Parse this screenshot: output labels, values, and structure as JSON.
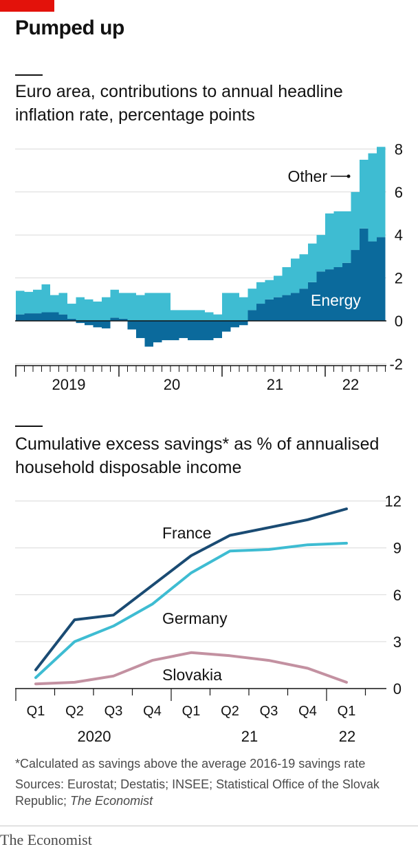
{
  "headline": "Pumped up",
  "chart_data": [
    {
      "type": "bar",
      "stacked": true,
      "title": "Euro area, contributions to annual headline inflation rate, percentage points",
      "ylim": [
        -2,
        8
      ],
      "yticks": [
        -2,
        0,
        2,
        4,
        6,
        8
      ],
      "x_labels": [
        "2019",
        "20",
        "21",
        "22"
      ],
      "annotations": [
        "Other",
        "Energy"
      ],
      "series": [
        {
          "name": "Energy",
          "color": "#0b6a9c",
          "values": [
            0.3,
            0.35,
            0.35,
            0.4,
            0.4,
            0.3,
            0.1,
            -0.1,
            -0.2,
            -0.3,
            -0.35,
            0.15,
            0.1,
            -0.4,
            -0.8,
            -1.2,
            -1.0,
            -0.9,
            -0.9,
            -0.8,
            -0.9,
            -0.9,
            -0.9,
            -0.8,
            -0.5,
            -0.3,
            -0.2,
            0.5,
            0.8,
            1.0,
            1.1,
            1.2,
            1.3,
            1.5,
            1.8,
            2.3,
            2.4,
            2.5,
            2.7,
            3.3,
            4.3,
            3.7,
            3.9
          ]
        },
        {
          "name": "Other",
          "color": "#3ebcd2",
          "values": [
            1.1,
            1.0,
            1.1,
            1.3,
            0.8,
            1.0,
            0.7,
            1.1,
            1.0,
            0.9,
            1.1,
            1.3,
            1.2,
            1.3,
            1.2,
            1.3,
            1.3,
            1.3,
            0.5,
            0.5,
            0.5,
            0.5,
            0.4,
            0.3,
            1.3,
            1.3,
            1.1,
            1.0,
            1.0,
            0.9,
            1.0,
            1.3,
            1.6,
            1.6,
            1.8,
            1.7,
            2.6,
            2.6,
            2.4,
            2.7,
            3.2,
            4.1,
            4.2
          ]
        }
      ]
    },
    {
      "type": "line",
      "title": "Cumulative excess savings* as % of annualised household disposable income",
      "ylim": [
        0,
        12
      ],
      "yticks": [
        0,
        3,
        6,
        9,
        12
      ],
      "categories": [
        "Q1",
        "Q2",
        "Q3",
        "Q4",
        "Q1",
        "Q2",
        "Q3",
        "Q4",
        "Q1"
      ],
      "year_labels": [
        "2020",
        "21",
        "22"
      ],
      "series": [
        {
          "name": "France",
          "color": "#1a4b73",
          "values": [
            1.2,
            4.4,
            4.7,
            6.6,
            8.5,
            9.8,
            10.3,
            10.8,
            11.5
          ]
        },
        {
          "name": "Germany",
          "color": "#3ebcd2",
          "values": [
            0.7,
            3.0,
            4.0,
            5.4,
            7.4,
            8.8,
            8.9,
            9.2,
            9.3
          ]
        },
        {
          "name": "Slovakia",
          "color": "#c391a1",
          "values": [
            0.3,
            0.4,
            0.8,
            1.8,
            2.3,
            2.1,
            1.8,
            1.3,
            0.4
          ]
        }
      ]
    }
  ],
  "footnote": "*Calculated as savings above the average 2016-19 savings rate",
  "sources": {
    "prefix": "Sources: Eurostat; Destatis; INSEE; Statistical Office of the Slovak Republic; ",
    "italic": "The Economist"
  },
  "logo": "The Economist"
}
